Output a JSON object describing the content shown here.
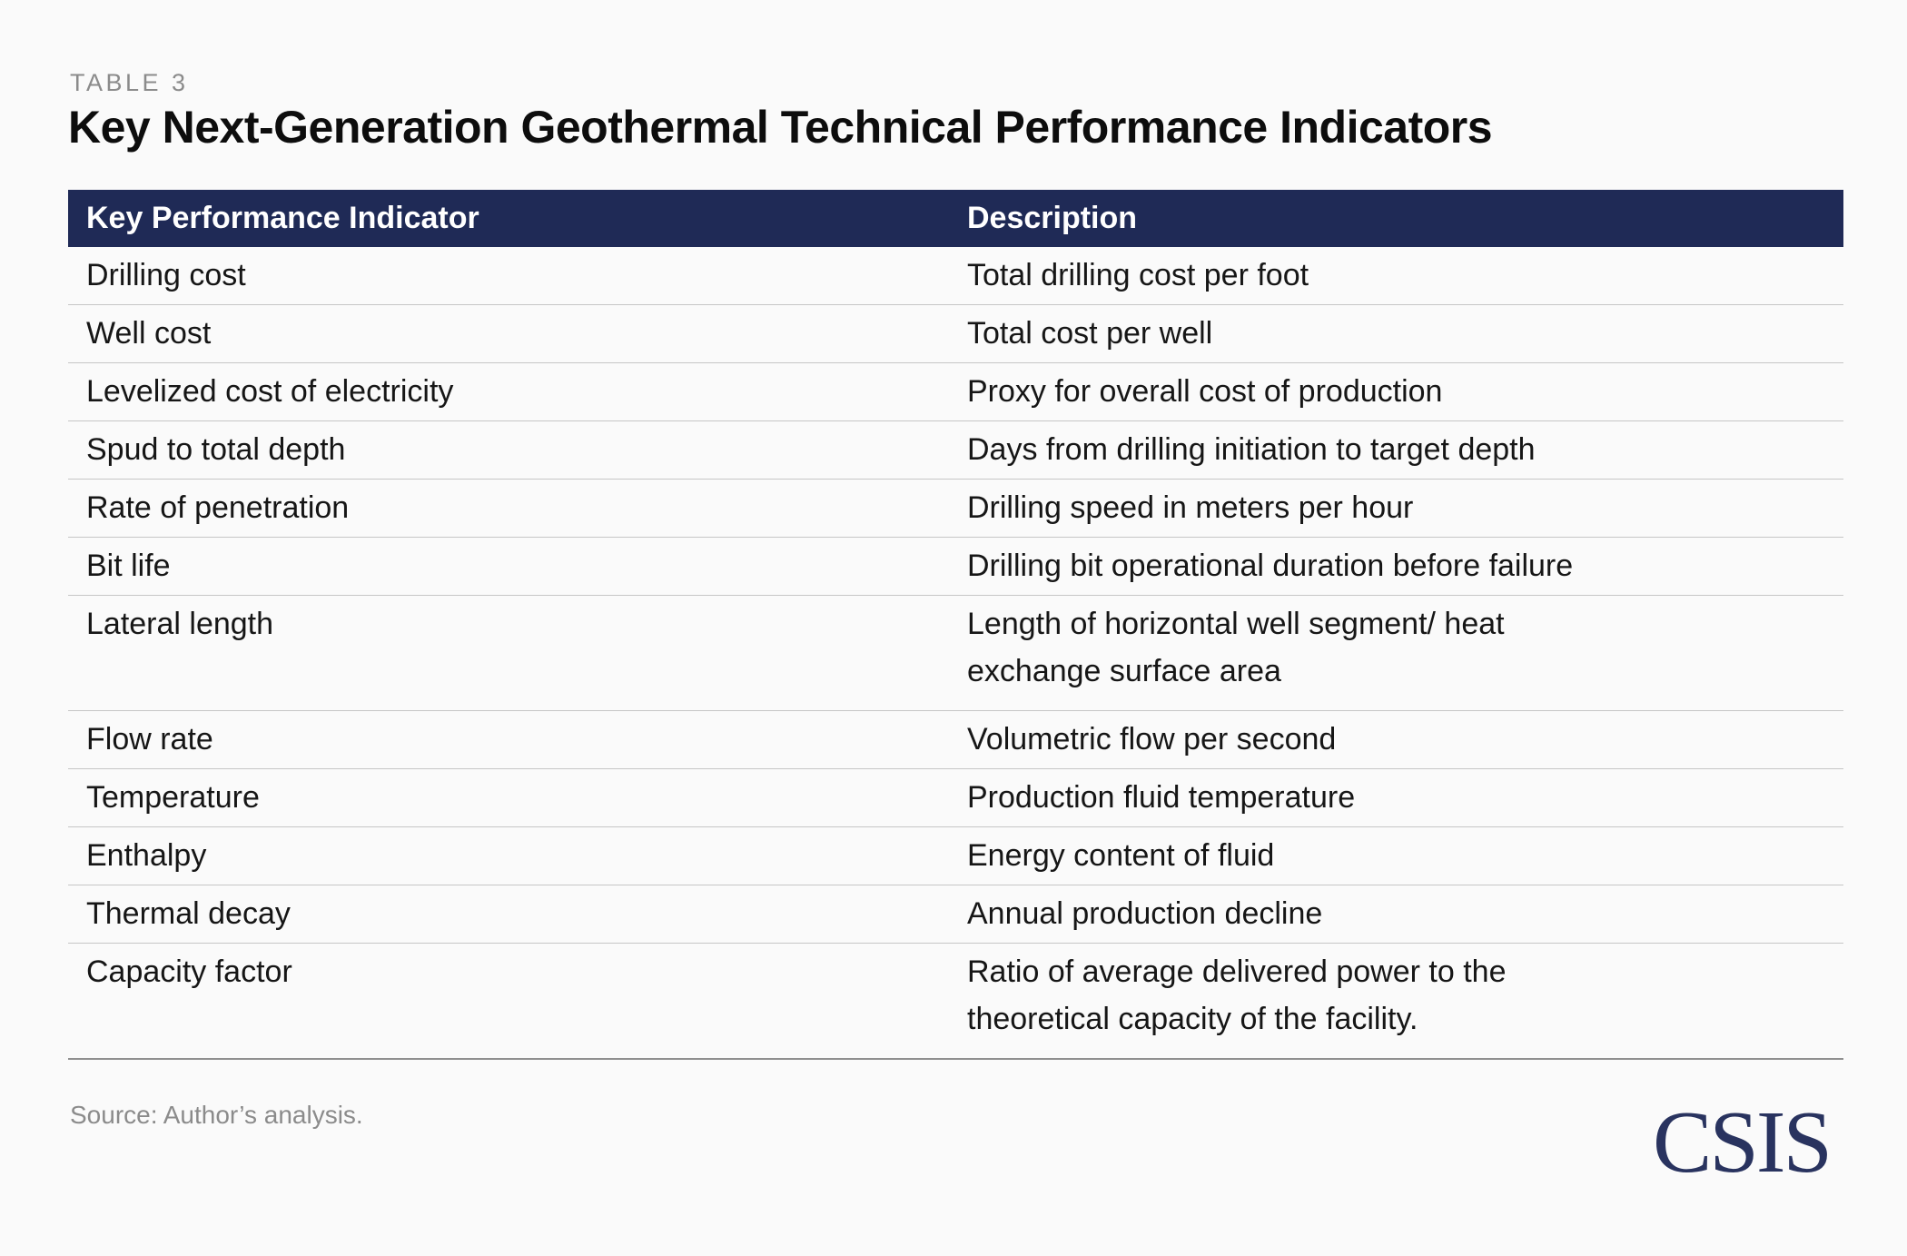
{
  "kicker": "TABLE 3",
  "title": "Key Next-Generation Geothermal Technical Performance Indicators",
  "table": {
    "headers": [
      "Key Performance Indicator",
      "Description"
    ],
    "rows": [
      {
        "kpi": "Drilling cost",
        "desc": "Total drilling cost per foot"
      },
      {
        "kpi": "Well cost",
        "desc": "Total cost per well"
      },
      {
        "kpi": "Levelized cost of electricity",
        "desc": "Proxy for overall cost of production"
      },
      {
        "kpi": "Spud to total depth",
        "desc": "Days from drilling initiation to target depth"
      },
      {
        "kpi": "Rate of penetration",
        "desc": "Drilling speed in meters per hour"
      },
      {
        "kpi": "Bit life",
        "desc": "Drilling bit operational duration before failure"
      },
      {
        "kpi": "Lateral length",
        "desc": "Length of horizontal well segment/ heat\nexchange surface area"
      },
      {
        "kpi": "Flow rate",
        "desc": "Volumetric flow per second"
      },
      {
        "kpi": "Temperature",
        "desc": "Production fluid temperature"
      },
      {
        "kpi": "Enthalpy",
        "desc": "Energy content of fluid"
      },
      {
        "kpi": "Thermal decay",
        "desc": "Annual production decline"
      },
      {
        "kpi": "Capacity factor",
        "desc": "Ratio of average delivered power to the\ntheoretical capacity of the facility."
      }
    ]
  },
  "source": "Source: Author’s analysis.",
  "logo": "CSIS",
  "colors": {
    "background": "#fafafa",
    "header_navy": "#1f2a56",
    "header_text": "#ffffff",
    "body_text": "#161616",
    "divider_gray": "#c6c6c6",
    "table_bottom_rule": "#8f8f8f",
    "muted_gray": "#8b8b8b",
    "logo_navy": "#29335f"
  }
}
